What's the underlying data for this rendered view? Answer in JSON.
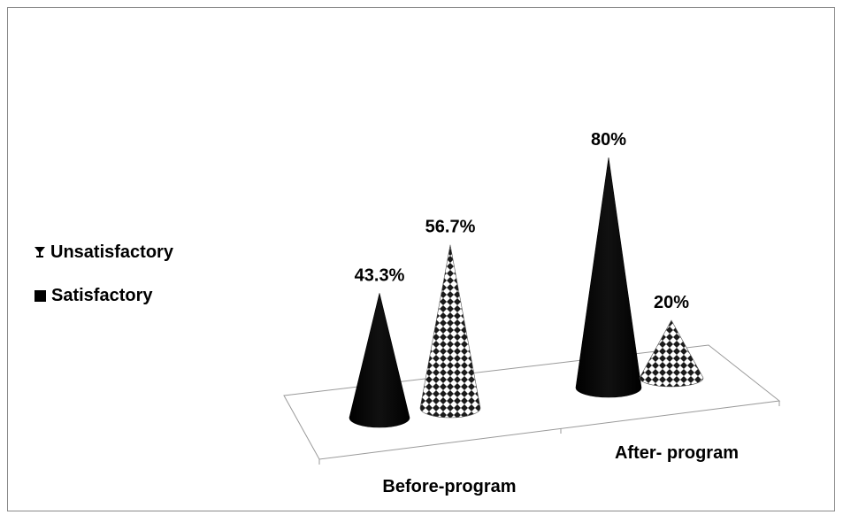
{
  "chart_data": {
    "type": "bar",
    "style": "3d-cone",
    "categories": [
      "Before-program",
      "After- program"
    ],
    "series": [
      {
        "name": "Satisfactory",
        "values": [
          43.3,
          80
        ],
        "labels": [
          "43.3%",
          "80%"
        ],
        "color": "#000000"
      },
      {
        "name": "Unsatisfactory",
        "values": [
          56.7,
          20
        ],
        "labels": [
          "56.7%",
          "20%"
        ],
        "color": "#ffffff",
        "pattern": "checker"
      }
    ],
    "ylim": [
      0,
      80
    ],
    "legend_position": "left",
    "grid": false
  }
}
